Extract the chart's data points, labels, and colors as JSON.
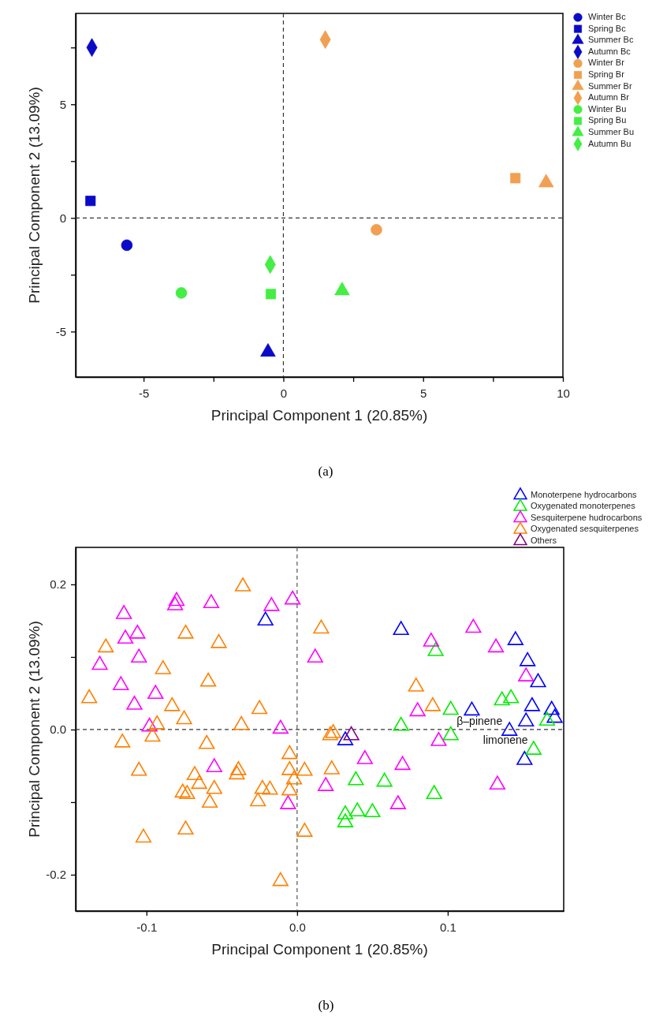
{
  "chart_data": [
    {
      "type": "scatter",
      "xlabel": "Principal Component 1 (20.85%)",
      "ylabel": "Principal Component 2 (13.09%)",
      "annotations": [
        "(a)"
      ],
      "xlim": [
        -7.43,
        10
      ],
      "ylim": [
        -7,
        9
      ],
      "xticks": [
        -5,
        {
          "value": -2.5,
          "label": null
        },
        0,
        {
          "value": 2.5,
          "label": null
        },
        5,
        {
          "value": 7.5,
          "label": null
        },
        10
      ],
      "yticks": [
        -5,
        {
          "value": -2.5,
          "label": null
        },
        0,
        {
          "value": 2.5,
          "label": null
        },
        5,
        {
          "value": 7.5,
          "label": null
        }
      ],
      "ref_lines": [
        {
          "axis": "x",
          "value": 0,
          "line_style": "dashed",
          "color": "#333333"
        },
        {
          "axis": "y",
          "value": 0,
          "line_style": "dashed",
          "color": "#333333"
        }
      ],
      "legend": "top right",
      "grid": false,
      "series": [
        {
          "name": "Winter Bc",
          "color": "#0a0ac8",
          "marker": "circle",
          "x": [
            -5.6
          ],
          "values": [
            -1.2
          ]
        },
        {
          "name": "Spring Bc",
          "color": "#0a0ac8",
          "marker": "square",
          "x": [
            -6.9
          ],
          "values": [
            0.75
          ]
        },
        {
          "name": "Summer Bc",
          "color": "#0a0ac8",
          "marker": "triangle",
          "x": [
            -0.55
          ],
          "values": [
            -5.9
          ]
        },
        {
          "name": "Autumn Bc",
          "color": "#0a0ac8",
          "marker": "diamond",
          "x": [
            -6.85
          ],
          "values": [
            7.5
          ]
        },
        {
          "name": "Winter Br",
          "color": "#f0a050",
          "marker": "circle",
          "x": [
            3.33
          ],
          "values": [
            -0.52
          ]
        },
        {
          "name": "Spring Br",
          "color": "#f0a050",
          "marker": "square",
          "x": [
            8.3
          ],
          "values": [
            1.75
          ]
        },
        {
          "name": "Summer Br",
          "color": "#f0a050",
          "marker": "triangle",
          "x": [
            9.4
          ],
          "values": [
            1.55
          ]
        },
        {
          "name": "Autumn Br",
          "color": "#f0a050",
          "marker": "diamond",
          "x": [
            1.5
          ],
          "values": [
            7.85
          ]
        },
        {
          "name": "Winter Bu",
          "color": "#44ee44",
          "marker": "circle",
          "x": [
            -3.65
          ],
          "values": [
            -3.3
          ]
        },
        {
          "name": "Spring Bu",
          "color": "#44ee44",
          "marker": "square",
          "x": [
            -0.45
          ],
          "values": [
            -3.35
          ]
        },
        {
          "name": "Summer Bu",
          "color": "#44ee44",
          "marker": "triangle",
          "x": [
            2.1
          ],
          "values": [
            -3.2
          ]
        },
        {
          "name": "Autumn Bu",
          "color": "#44ee44",
          "marker": "diamond",
          "x": [
            -0.47
          ],
          "values": [
            -2.05
          ]
        }
      ]
    },
    {
      "type": "scatter",
      "xlabel": "Principal Component 1 (20.85%)",
      "ylabel": "Principal Component 2 (13.09%)",
      "xlim": [
        -0.147,
        0.177
      ],
      "ylim": [
        -0.25,
        0.251
      ],
      "xticks": [
        -0.1,
        {
          "value": 0,
          "label": "0.0"
        },
        0.1
      ],
      "yticks": [
        -0.2,
        {
          "value": -0.1,
          "label": null
        },
        {
          "value": 0,
          "label": "0.0"
        },
        {
          "value": 0.1,
          "label": null
        },
        0.2
      ],
      "ref_lines": [
        {
          "axis": "x",
          "value": 0,
          "line_style": "dashed",
          "color": "#555555"
        },
        {
          "axis": "y",
          "value": 0,
          "line_style": "dashed",
          "color": "#333333"
        }
      ],
      "annotations": [
        {
          "text": "β–pinene",
          "x": 0.152,
          "y": 0.011
        },
        {
          "text": "limonene",
          "x": 0.141,
          "y": -0.002
        },
        "(b)"
      ],
      "legend": "top right",
      "grid": false,
      "marker": "triangle",
      "series": [
        {
          "name": "Monoterpene hydrocarbons",
          "color": "#0000ff",
          "x": [
            -0.021,
            0.069,
            0.145,
            0.153,
            0.16,
            0.116,
            0.156,
            0.169,
            0.171,
            0.152,
            0.141,
            0.151,
            0.032
          ],
          "values": [
            0.15,
            0.137,
            0.123,
            0.094,
            0.065,
            0.026,
            0.032,
            0.027,
            0.016,
            0.011,
            -0.002,
            -0.042,
            -0.015
          ]
        },
        {
          "name": "Oxygenated monoterpenes",
          "color": "#00ee00",
          "x": [
            0.092,
            0.136,
            0.142,
            0.102,
            0.166,
            0.069,
            0.102,
            0.157,
            0.039,
            0.058,
            0.091,
            0.04,
            0.05,
            0.032,
            0.032
          ],
          "values": [
            0.108,
            0.04,
            0.043,
            0.027,
            0.012,
            0.005,
            -0.008,
            -0.028,
            -0.07,
            -0.072,
            -0.089,
            -0.113,
            -0.114,
            -0.117,
            -0.128
          ]
        },
        {
          "name": "Sesquiterpene hudrocarbons",
          "color": "#ff00ff",
          "x": [
            -0.115,
            -0.08,
            -0.081,
            -0.057,
            -0.017,
            -0.003,
            -0.114,
            -0.106,
            -0.131,
            -0.105,
            -0.117,
            -0.094,
            -0.108,
            -0.098,
            -0.011,
            -0.055,
            -0.006,
            0.012,
            0.117,
            0.089,
            0.132,
            0.152,
            0.08,
            0.094,
            0.045,
            0.07,
            0.019,
            0.067,
            0.133
          ],
          "values": [
            0.159,
            0.177,
            0.171,
            0.174,
            0.17,
            0.179,
            0.125,
            0.132,
            0.089,
            0.099,
            0.061,
            0.049,
            0.034,
            0.004,
            0.001,
            -0.052,
            -0.103,
            0.099,
            0.14,
            0.121,
            0.113,
            0.073,
            0.025,
            -0.016,
            -0.041,
            -0.049,
            -0.078,
            -0.103,
            -0.076
          ]
        },
        {
          "name": "Oxygenated sesquiterpenes",
          "color": "#ff8000",
          "x": [
            -0.036,
            -0.074,
            -0.052,
            -0.127,
            -0.089,
            -0.059,
            -0.138,
            -0.083,
            -0.075,
            -0.025,
            -0.093,
            -0.037,
            -0.096,
            -0.116,
            -0.06,
            -0.005,
            -0.105,
            -0.068,
            -0.065,
            -0.039,
            -0.04,
            -0.055,
            -0.076,
            -0.073,
            -0.058,
            -0.023,
            -0.018,
            -0.026,
            -0.005,
            0.005,
            -0.002,
            -0.005,
            -0.074,
            -0.102,
            0.005,
            -0.011,
            0.016,
            0.079,
            0.09,
            0.022,
            0.024,
            0.023
          ],
          "values": [
            0.197,
            0.132,
            0.119,
            0.113,
            0.083,
            0.066,
            0.043,
            0.032,
            0.014,
            0.028,
            0.007,
            0.006,
            -0.01,
            -0.018,
            -0.02,
            -0.034,
            -0.057,
            -0.063,
            -0.075,
            -0.056,
            -0.062,
            -0.082,
            -0.087,
            -0.089,
            -0.101,
            -0.082,
            -0.083,
            -0.099,
            -0.056,
            -0.057,
            -0.069,
            -0.084,
            -0.138,
            -0.149,
            -0.141,
            -0.209,
            0.139,
            0.059,
            0.032,
            -0.008,
            -0.005,
            -0.055
          ]
        },
        {
          "name": "Others",
          "color": "#800080",
          "x": [
            0.036
          ],
          "values": [
            -0.008
          ]
        }
      ]
    }
  ]
}
